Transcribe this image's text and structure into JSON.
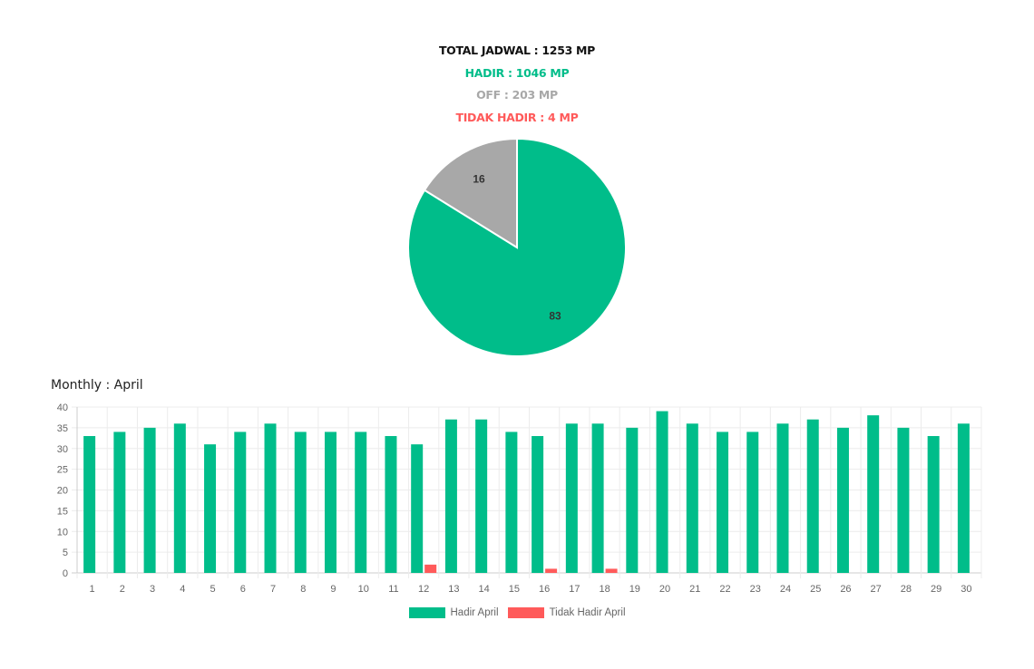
{
  "header": {
    "total_label": "TOTAL JADWAL : 1253 MP",
    "hadir_label": "HADIR : 1046 MP",
    "off_label": "OFF : 203 MP",
    "tidak_hadir_label": "TIDAK HADIR : 4 MP"
  },
  "colors": {
    "hadir": "#00bd8a",
    "off": "#a8a8a8",
    "tidak_hadir": "#ff5a5a",
    "total": "#111111"
  },
  "monthly_title": "Monthly : April",
  "chart_data": [
    {
      "type": "pie",
      "slices": [
        {
          "label": "Hadir",
          "value": 83,
          "color": "#00bd8a"
        },
        {
          "label": "Off",
          "value": 16,
          "color": "#a8a8a8"
        }
      ],
      "data_labels": [
        "83",
        "16"
      ]
    },
    {
      "type": "bar",
      "categories": [
        "1",
        "2",
        "3",
        "4",
        "5",
        "6",
        "7",
        "8",
        "9",
        "10",
        "11",
        "12",
        "13",
        "14",
        "15",
        "16",
        "17",
        "18",
        "19",
        "20",
        "21",
        "22",
        "23",
        "24",
        "25",
        "26",
        "27",
        "28",
        "29",
        "30"
      ],
      "series": [
        {
          "name": "Hadir April",
          "color": "#00bd8a",
          "values": [
            33,
            34,
            35,
            36,
            31,
            34,
            36,
            34,
            34,
            34,
            33,
            31,
            37,
            37,
            34,
            33,
            36,
            36,
            35,
            39,
            36,
            34,
            34,
            36,
            37,
            35,
            38,
            35,
            33,
            36
          ]
        },
        {
          "name": "Tidak Hadir April",
          "color": "#ff5a5a",
          "values": [
            0,
            0,
            0,
            0,
            0,
            0,
            0,
            0,
            0,
            0,
            0,
            2,
            0,
            0,
            0,
            1,
            0,
            1,
            0,
            0,
            0,
            0,
            0,
            0,
            0,
            0,
            0,
            0,
            0,
            0
          ]
        }
      ],
      "ylim": [
        0,
        40
      ],
      "yticks": [
        "0",
        "5",
        "10",
        "15",
        "20",
        "25",
        "30",
        "35",
        "40"
      ],
      "grid": true,
      "legend": "bottom"
    }
  ]
}
